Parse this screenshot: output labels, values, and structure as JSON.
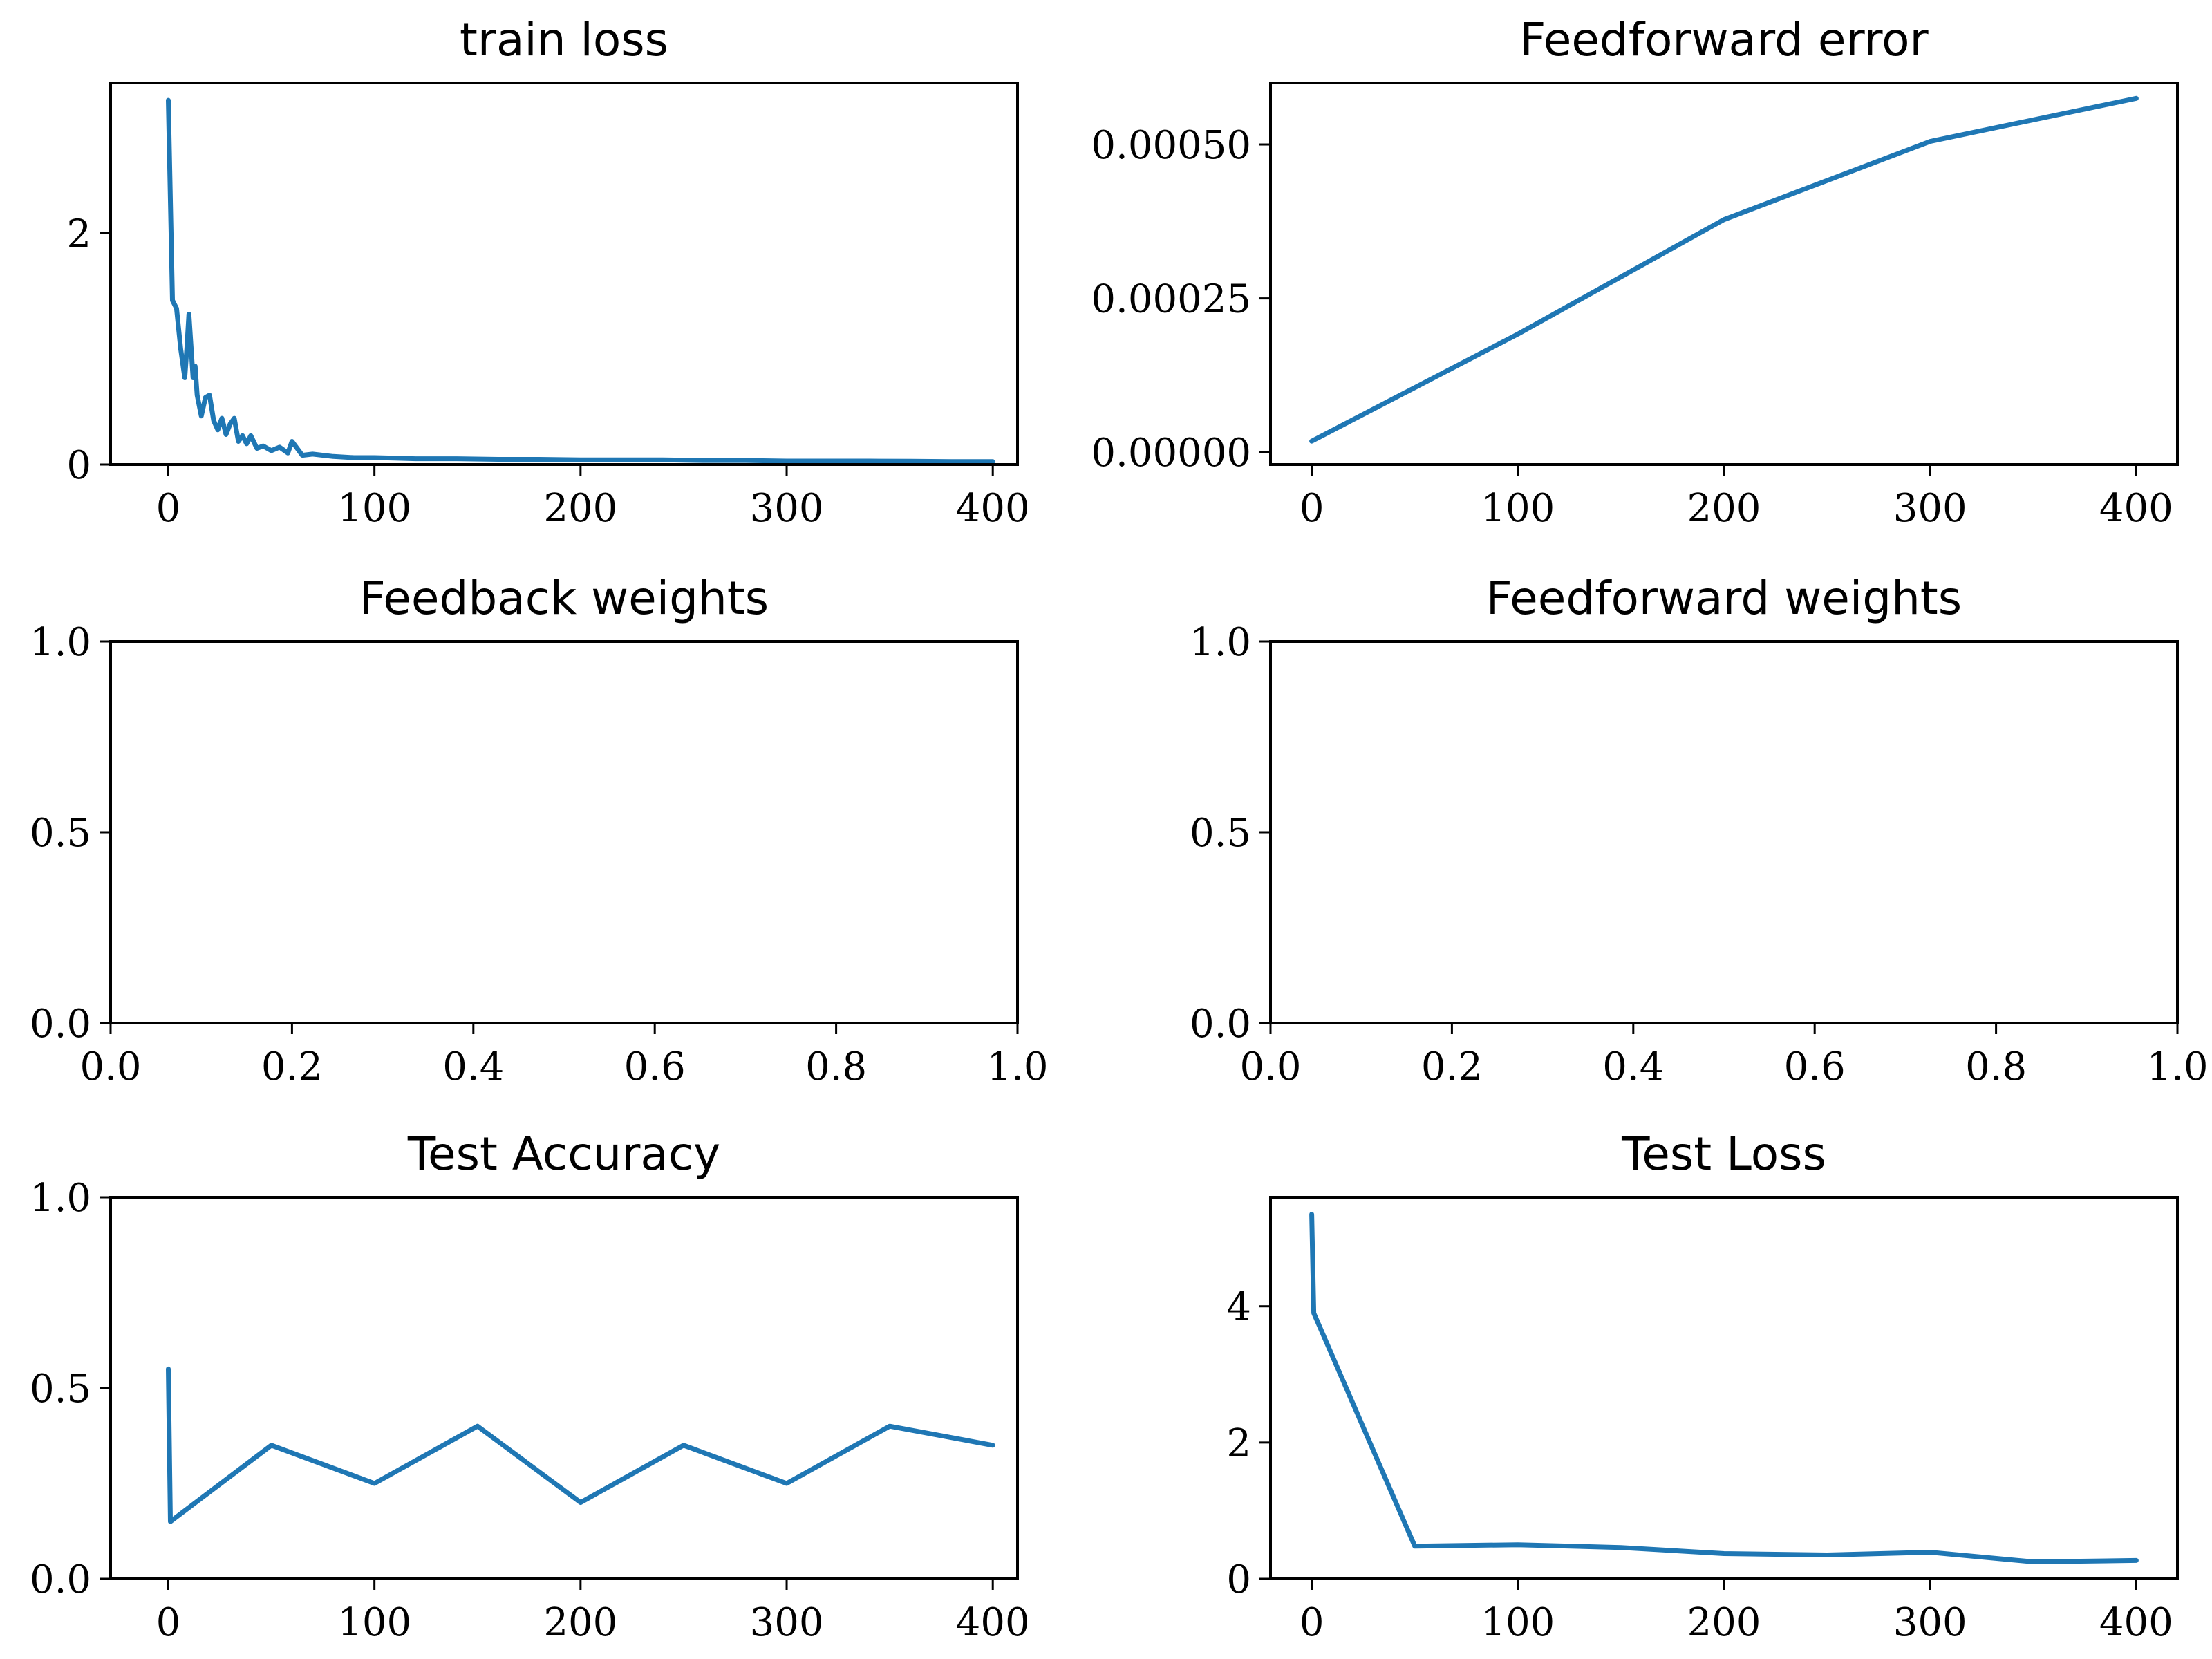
{
  "colors": {
    "series": "#1f77b4",
    "axes": "#000000",
    "background": "#ffffff"
  },
  "chart_data": [
    {
      "id": "train-loss",
      "type": "line",
      "title": "train loss",
      "xlim": [
        -28,
        412
      ],
      "ylim": [
        0,
        3.3
      ],
      "xticks": [
        0,
        100,
        200,
        300,
        400
      ],
      "xtick_labels": [
        "0",
        "100",
        "200",
        "300",
        "400"
      ],
      "yticks": [
        0,
        2
      ],
      "ytick_labels": [
        "0",
        "2"
      ],
      "grid": false,
      "series": [
        {
          "x": [
            0,
            2,
            4,
            6,
            8,
            9,
            10,
            12,
            13,
            14,
            16,
            18,
            20,
            22,
            24,
            26,
            28,
            30,
            32,
            34,
            36,
            38,
            40,
            43,
            46,
            50,
            54,
            58,
            60,
            65,
            70,
            80,
            90,
            100,
            110,
            120,
            140,
            160,
            180,
            200,
            220,
            240,
            260,
            280,
            300,
            320,
            340,
            360,
            380,
            400
          ],
          "y": [
            3.15,
            1.42,
            1.35,
            1.0,
            0.75,
            1.0,
            1.3,
            0.75,
            0.85,
            0.6,
            0.42,
            0.58,
            0.6,
            0.38,
            0.3,
            0.4,
            0.26,
            0.35,
            0.4,
            0.2,
            0.25,
            0.18,
            0.25,
            0.14,
            0.16,
            0.12,
            0.15,
            0.1,
            0.2,
            0.08,
            0.09,
            0.07,
            0.06,
            0.06,
            0.055,
            0.05,
            0.05,
            0.045,
            0.045,
            0.04,
            0.04,
            0.04,
            0.035,
            0.035,
            0.03,
            0.03,
            0.03,
            0.028,
            0.025,
            0.025
          ]
        }
      ]
    },
    {
      "id": "feedforward-error",
      "type": "line",
      "title": "Feedforward error",
      "xlim": [
        -20,
        420
      ],
      "ylim": [
        -2e-05,
        0.0006
      ],
      "xticks": [
        0,
        100,
        200,
        300,
        400
      ],
      "xtick_labels": [
        "0",
        "100",
        "200",
        "300",
        "400"
      ],
      "yticks": [
        0,
        0.00025,
        0.0005
      ],
      "ytick_labels": [
        "0.00000",
        "0.00025",
        "0.00050"
      ],
      "grid": false,
      "series": [
        {
          "x": [
            0,
            100,
            200,
            300,
            400
          ],
          "y": [
            1.8e-05,
            0.000192,
            0.000378,
            0.000505,
            0.000575
          ]
        }
      ]
    },
    {
      "id": "feedback-weights",
      "type": "line",
      "title": "Feedback weights",
      "xlim": [
        0,
        1
      ],
      "ylim": [
        0,
        1
      ],
      "xticks": [
        0,
        0.2,
        0.4,
        0.6,
        0.8,
        1.0
      ],
      "xtick_labels": [
        "0.0",
        "0.2",
        "0.4",
        "0.6",
        "0.8",
        "1.0"
      ],
      "yticks": [
        0,
        0.5,
        1.0
      ],
      "ytick_labels": [
        "0.0",
        "0.5",
        "1.0"
      ],
      "grid": false,
      "series": []
    },
    {
      "id": "feedforward-weights",
      "type": "line",
      "title": "Feedforward weights",
      "xlim": [
        0,
        1
      ],
      "ylim": [
        0,
        1
      ],
      "xticks": [
        0,
        0.2,
        0.4,
        0.6,
        0.8,
        1.0
      ],
      "xtick_labels": [
        "0.0",
        "0.2",
        "0.4",
        "0.6",
        "0.8",
        "1.0"
      ],
      "yticks": [
        0,
        0.5,
        1.0
      ],
      "ytick_labels": [
        "0.0",
        "0.5",
        "1.0"
      ],
      "grid": false,
      "series": []
    },
    {
      "id": "test-accuracy",
      "type": "line",
      "title": "Test Accuracy",
      "xlim": [
        -28,
        412
      ],
      "ylim": [
        0,
        1
      ],
      "xticks": [
        0,
        100,
        200,
        300,
        400
      ],
      "xtick_labels": [
        "0",
        "100",
        "200",
        "300",
        "400"
      ],
      "yticks": [
        0,
        0.5,
        1.0
      ],
      "ytick_labels": [
        "0.0",
        "0.5",
        "1.0"
      ],
      "grid": false,
      "series": [
        {
          "x": [
            0,
            1,
            50,
            100,
            150,
            200,
            250,
            300,
            350,
            400
          ],
          "y": [
            0.55,
            0.15,
            0.35,
            0.25,
            0.4,
            0.2,
            0.35,
            0.25,
            0.4,
            0.35
          ]
        }
      ]
    },
    {
      "id": "test-loss",
      "type": "line",
      "title": "Test Loss",
      "xlim": [
        -20,
        420
      ],
      "ylim": [
        0,
        5.6
      ],
      "xticks": [
        0,
        100,
        200,
        300,
        400
      ],
      "xtick_labels": [
        "0",
        "100",
        "200",
        "300",
        "400"
      ],
      "yticks": [
        0,
        2,
        4
      ],
      "ytick_labels": [
        "0",
        "2",
        "4"
      ],
      "grid": false,
      "series": [
        {
          "x": [
            0,
            1,
            50,
            100,
            150,
            200,
            250,
            300,
            350,
            400
          ],
          "y": [
            5.35,
            3.9,
            0.48,
            0.5,
            0.46,
            0.37,
            0.35,
            0.39,
            0.25,
            0.27
          ]
        }
      ]
    }
  ]
}
